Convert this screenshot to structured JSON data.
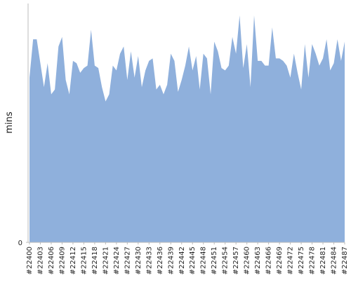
{
  "chart_data": {
    "type": "area",
    "y_label": "mins",
    "color": "#8fb0dc",
    "ylim": [
      0,
      100
    ],
    "yticks": [
      0
    ],
    "categories": [
      "#22400",
      null,
      null,
      "#22403",
      null,
      null,
      "#22406",
      null,
      null,
      "#22409",
      null,
      null,
      "#22412",
      null,
      null,
      "#22415",
      null,
      null,
      "#22418",
      null,
      null,
      "#22421",
      null,
      null,
      "#22424",
      null,
      null,
      "#22427",
      null,
      null,
      "#22430",
      null,
      null,
      "#22433",
      null,
      null,
      "#22436",
      null,
      null,
      "#22439",
      null,
      null,
      "#22442",
      null,
      null,
      "#22445",
      null,
      null,
      "#22448",
      null,
      null,
      "#22451",
      null,
      null,
      "#22454",
      null,
      null,
      "#22457",
      null,
      null,
      "#22460",
      null,
      null,
      "#22463",
      null,
      null,
      "#22466",
      null,
      null,
      "#22469",
      null,
      null,
      "#22472",
      null,
      null,
      "#22475",
      null,
      null,
      "#22478",
      null,
      null,
      "#22481",
      null,
      null,
      "#22484",
      null,
      null,
      "#22487"
    ],
    "values": [
      69,
      85,
      85,
      75,
      65,
      75,
      62,
      64,
      82,
      86,
      68,
      62,
      76,
      75,
      71,
      73,
      74,
      89,
      74,
      73,
      65,
      59,
      62,
      74,
      72,
      79,
      82,
      68,
      80,
      69,
      78,
      65,
      72,
      76,
      77,
      64,
      66,
      62,
      66,
      79,
      76,
      63,
      68,
      74,
      82,
      72,
      78,
      64,
      79,
      77,
      62,
      84,
      80,
      73,
      72,
      74,
      86,
      79,
      95,
      73,
      83,
      65,
      95,
      76,
      76,
      74,
      74,
      90,
      77,
      77,
      76,
      74,
      69,
      79,
      71,
      64,
      83,
      69,
      83,
      79,
      74,
      77,
      85,
      72,
      75,
      85,
      76,
      84
    ]
  }
}
